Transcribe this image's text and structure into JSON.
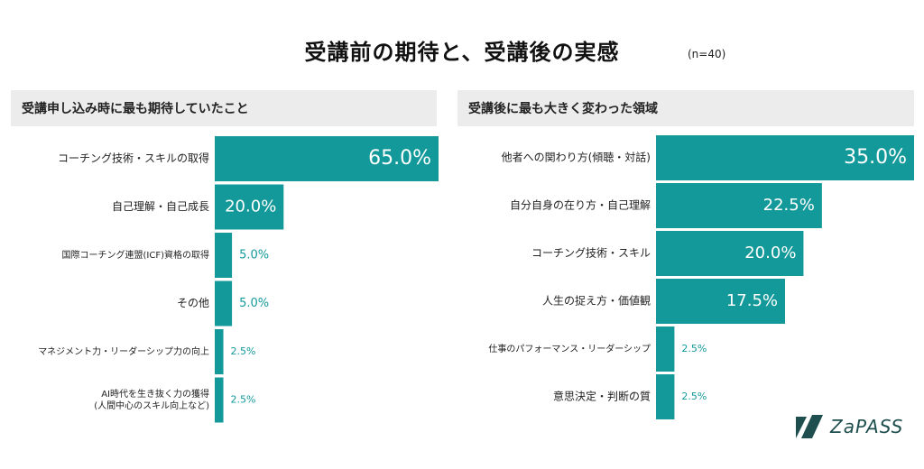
{
  "title": "受講前の期待と、受講後の実感",
  "sample_note": "(n=40)",
  "colors": {
    "bar": "#14999b",
    "header_bg": "#ececec",
    "logo": "#1f4e4e"
  },
  "logo_text": "ZaPASS",
  "chart_data": [
    {
      "type": "bar",
      "orientation": "horizontal",
      "title": "受講申し込み時に最も期待していたこと",
      "categories": [
        [
          "コーチング技術・スキルの取得"
        ],
        [
          "自己理解・自己成長"
        ],
        [
          "国際コーチング連盟(ICF)資格の取得"
        ],
        [
          "その他"
        ],
        [
          "マネジメント力・リーダーシップ力の向上"
        ],
        [
          "AI時代を生き抜く力の獲得",
          "(人間中心のスキル向上など)"
        ]
      ],
      "values": [
        65.0,
        20.0,
        5.0,
        5.0,
        2.5,
        2.5
      ],
      "value_labels": [
        "65.0%",
        "20.0%",
        "5.0%",
        "5.0%",
        "2.5%",
        "2.5%"
      ],
      "xlim": [
        0,
        65
      ],
      "grid": false,
      "legend": "none"
    },
    {
      "type": "bar",
      "orientation": "horizontal",
      "title": "受講後に最も大きく変わった領域",
      "categories": [
        [
          "他者への関わり方(傾聴・対話)"
        ],
        [
          "自分自身の在り方・自己理解"
        ],
        [
          "コーチング技術・スキル"
        ],
        [
          "人生の捉え方・価値観"
        ],
        [
          "仕事のパフォーマンス・リーダーシップ"
        ],
        [
          "意思決定・判断の質"
        ]
      ],
      "values": [
        35.0,
        22.5,
        20.0,
        17.5,
        2.5,
        2.5
      ],
      "value_labels": [
        "35.0%",
        "22.5%",
        "20.0%",
        "17.5%",
        "2.5%",
        "2.5%"
      ],
      "xlim": [
        0,
        35
      ],
      "grid": false,
      "legend": "none"
    }
  ]
}
